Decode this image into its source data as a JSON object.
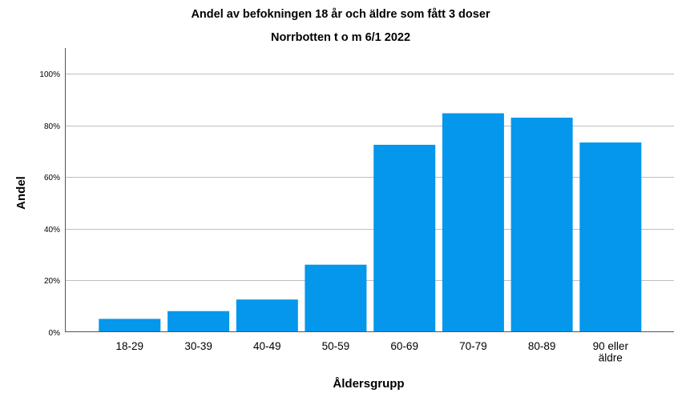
{
  "chart_data": {
    "type": "bar",
    "title": "Andel av befokningen 18 år och äldre som fått 3 doser",
    "subtitle": "Norrbotten t o m 6/1 2022",
    "xlabel": "Åldersgrupp",
    "ylabel": "Andel",
    "categories": [
      "18-29",
      "30-39",
      "40-49",
      "50-59",
      "60-69",
      "70-79",
      "80-89",
      "90 eller äldre"
    ],
    "values": [
      0.05,
      0.08,
      0.125,
      0.26,
      0.725,
      0.847,
      0.83,
      0.734
    ],
    "ylim": [
      0,
      1.1
    ],
    "yticks": [
      0,
      0.2,
      0.4,
      0.6,
      0.8,
      1.0
    ],
    "ytick_labels": [
      "0%",
      "20%",
      "40%",
      "60%",
      "80%",
      "100%"
    ],
    "grid": true,
    "legend": "none",
    "bar_color": "#0497EC",
    "grid_color": "#BEBEBE",
    "axis_color": "#555555"
  }
}
